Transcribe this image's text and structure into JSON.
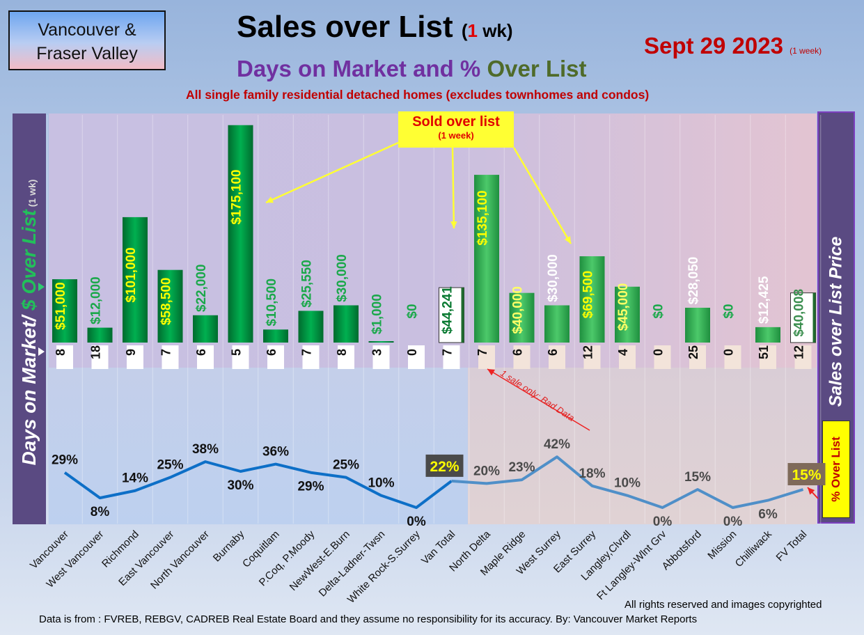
{
  "header": {
    "region_line1": "Vancouver &",
    "region_line2": "Fraser Valley",
    "title_main": "Sales over List",
    "title_open": "(",
    "title_num": "1",
    "title_close": " wk)",
    "subtitle_a": "Days on Market and % ",
    "subtitle_b": "Over List",
    "description": "All single family residential detached homes (excludes townhomes and condos)",
    "date": "Sept 29  2023",
    "date_note": "(1 week)"
  },
  "left_axis": {
    "label_a": "Days on Market/ ",
    "label_b": "$ Over List",
    "label_c": " (1 wk)"
  },
  "right_axis": {
    "label": "Sales over List Price"
  },
  "pct_box": "% Over List",
  "callout": {
    "line1": "Sold over list",
    "line2": "(1 week)"
  },
  "annotation_bad_data": "1 sale only: Bad Data",
  "footer": {
    "rights": "All rights reserved and  images copyrighted",
    "source": "Data is from : FVREB, REBGV, CADREB Real Estate Board and they assume no responsibility for its accuracy. By: Vancouver Market Reports"
  },
  "colors": {
    "bar_green": "#00b050",
    "bar_light_green": "#4cc96a",
    "line_van": "#0d6fc7",
    "line_fv": "#4f8fc8",
    "total_box_van": "#4a4a4a",
    "total_box_fv": "#7f6a5a",
    "highlight_yellow": "#ffff00"
  },
  "chart_data": {
    "type": "bar",
    "categories": [
      "Vancouver",
      "West Vancouver",
      "Richmond",
      "East Vancouver",
      "North Vancouver",
      "Burnaby",
      "Coquitlam",
      "P.Coq, P.Moody",
      "NewWest-E.Burn",
      "Delta-Ladner-Twsn",
      "White Rock-S.Surrey",
      "Van Total",
      "North Delta",
      "Maple Ridge",
      "West Surrey",
      "East Surrey",
      "Langley,Clvrdl",
      "Ft Langley-Wlnt Grv",
      "Abbotsford",
      "Mission",
      "Chilliwack",
      "FV Total"
    ],
    "series": [
      {
        "values": [
          51000,
          12000,
          101000,
          58500,
          22000,
          175100,
          10500,
          25550,
          30000,
          1000,
          0,
          44241,
          135100,
          40000,
          30000,
          69500,
          45000,
          0,
          28050,
          0,
          12425,
          40008
        ]
      },
      {
        "values": [
          8,
          18,
          9,
          7,
          6,
          5,
          6,
          7,
          8,
          3,
          0,
          7,
          7,
          6,
          6,
          12,
          4,
          0,
          25,
          0,
          51,
          12
        ]
      },
      {
        "values": [
          29,
          8,
          14,
          25,
          38,
          30,
          36,
          29,
          25,
          10,
          0,
          22,
          20,
          23,
          42,
          18,
          10,
          0,
          15,
          0,
          6,
          15
        ]
      }
    ],
    "bar_labels": [
      "$51,000",
      "$12,000",
      "$101,000",
      "$58,500",
      "$22,000",
      "$175,100",
      "$10,500",
      "$25,550",
      "$30,000",
      "$1,000",
      "$0",
      "$44,241",
      "$135,100",
      "$40,000",
      "$30,000",
      "$69,500",
      "$45,000",
      "$0",
      "$28,050",
      "$0",
      "$12,425",
      "$40,008"
    ],
    "dom_labels": [
      "8",
      "18",
      "9",
      "7",
      "6",
      "5",
      "6",
      "7",
      "8",
      "3",
      "0",
      "7",
      "7",
      "6",
      "6",
      "12",
      "4",
      "0",
      "25",
      "0",
      "51",
      "12"
    ],
    "pct_labels": [
      "29%",
      "8%",
      "14%",
      "25%",
      "38%",
      "30%",
      "36%",
      "29%",
      "25%",
      "10%",
      "0%",
      "22%",
      "20%",
      "23%",
      "42%",
      "18%",
      "10%",
      "0%",
      "15%",
      "0%",
      "6%",
      "15%"
    ],
    "ylim": [
      0,
      180000
    ],
    "pct_ylim": [
      0,
      45
    ],
    "grid": true,
    "xlabel": "",
    "ylabel": ""
  }
}
